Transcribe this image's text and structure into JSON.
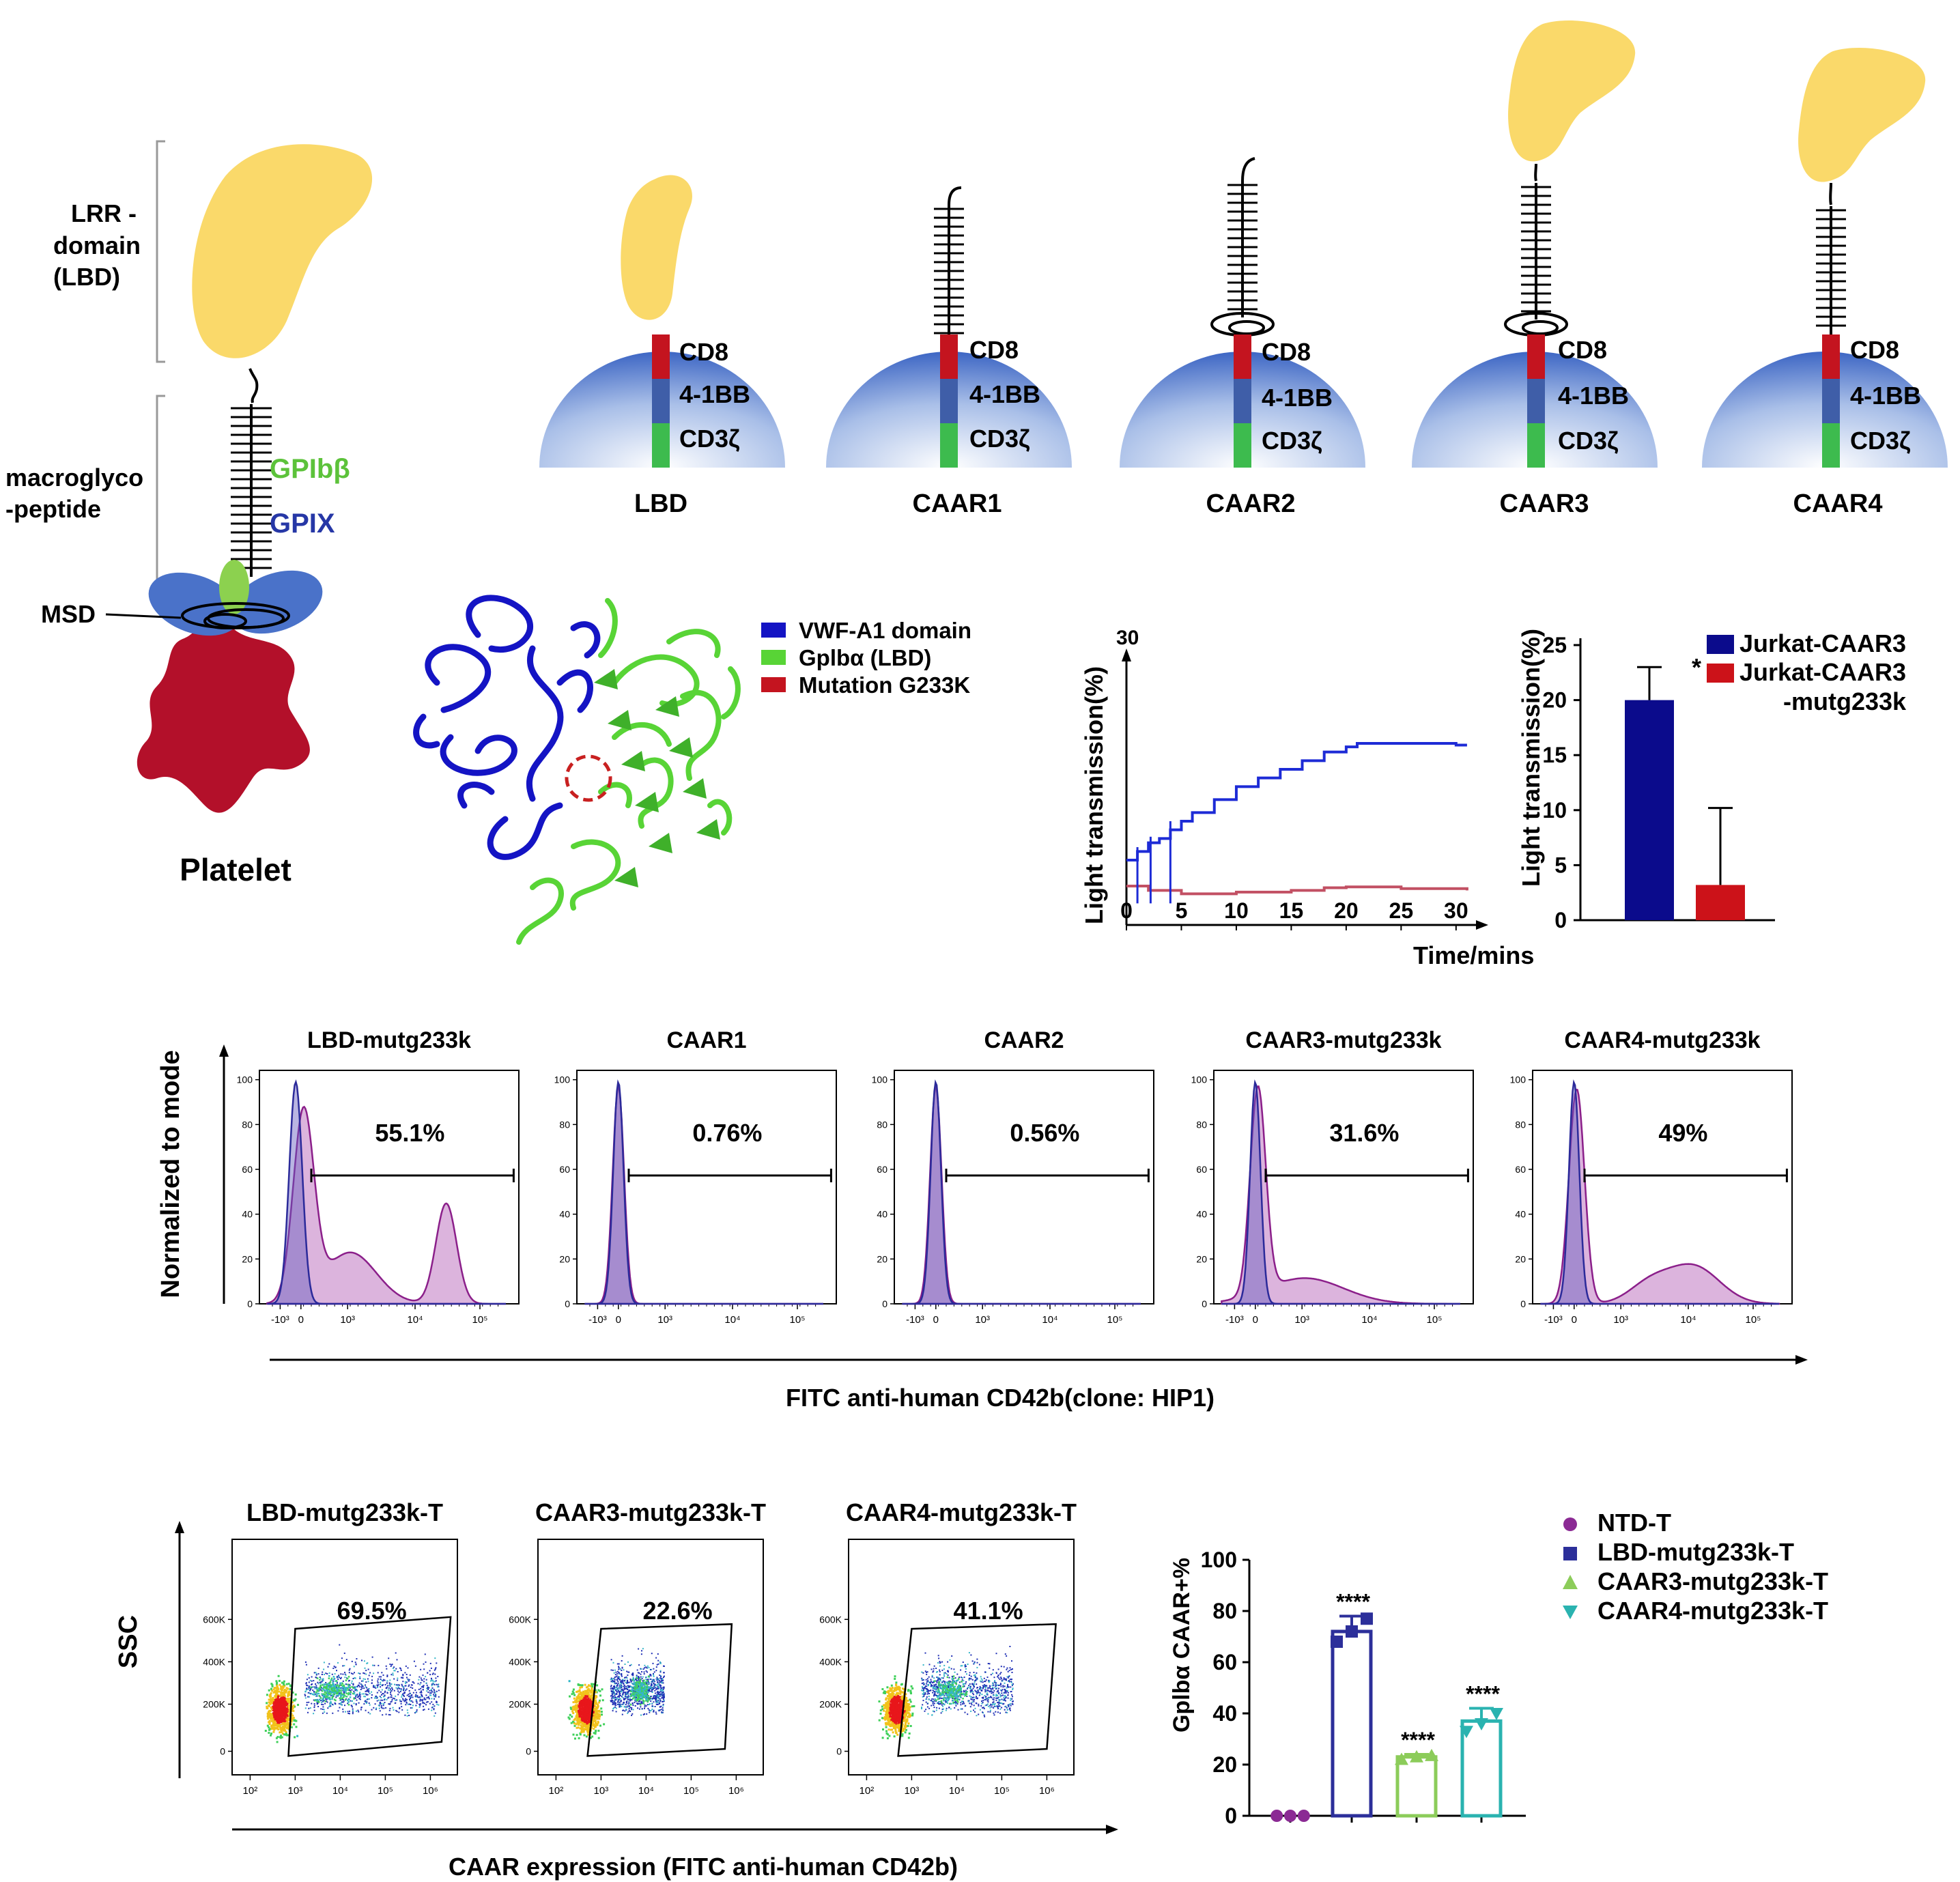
{
  "colors": {
    "yellow": "#fad96a",
    "cd8": "#c4141f",
    "bb41": "#3f5ea8",
    "cd3z": "#3dbb4e",
    "platelet": "#b3102a",
    "gpix": "#4a72c9",
    "gpib": "#8cd14f",
    "blue_line": "#1d2bd6",
    "red_line": "#c25063",
    "bar_blue": "#0b0b8c",
    "bar_red": "#cc1219",
    "flow_fill": "#dcb4dd",
    "flow_edge": "#8b1f8a",
    "flow_ctrl": "#2b2a9a",
    "ntd": "#8b2a94",
    "lbd": "#2c2f9a",
    "caar3": "#8ccc5a",
    "caar4": "#2ab3b0"
  },
  "panel_a": {
    "left": {
      "lrr_label": [
        "LRR -",
        "domain",
        "(LBD)"
      ],
      "macro_label": [
        "macroglyco",
        "-peptide"
      ],
      "gpib_label": "GPIbβ",
      "gpix_label": "GPIX",
      "msd_label": "MSD",
      "platelet_label": "Platelet"
    },
    "constructs": [
      {
        "name": "LBD",
        "head": "small",
        "stalk": false,
        "coil": false
      },
      {
        "name": "CAAR1",
        "head": "none",
        "stalk": true,
        "coil": false
      },
      {
        "name": "CAAR2",
        "head": "none",
        "stalk": true,
        "coil": true
      },
      {
        "name": "CAAR3",
        "head": "large",
        "stalk": true,
        "coil": true
      },
      {
        "name": "CAAR4",
        "head": "large",
        "stalk": true,
        "coil": false
      }
    ],
    "domains": [
      "CD8",
      "4-1BB",
      "CD3ζ"
    ]
  },
  "panel_b": {
    "legend": [
      "VWF-A1 domain",
      "Gplbα (LBD)",
      "Mutation G233K"
    ]
  },
  "chart_data": [
    {
      "type": "line",
      "title": "",
      "xlabel": "Time/mins",
      "ylabel": "Light transmission(%)",
      "ymax_label": "30",
      "xlim": [
        0,
        32
      ],
      "ylim": [
        0,
        30
      ],
      "x_ticks": [
        "0",
        "5",
        "10",
        "15",
        "20",
        "25",
        "30"
      ],
      "series": [
        {
          "name": "Jurkat-CAAR3",
          "x": [
            0,
            1,
            2,
            3,
            4,
            5,
            6,
            8,
            10,
            12,
            14,
            16,
            18,
            20,
            21,
            22,
            24,
            26,
            28,
            30,
            31
          ],
          "y": [
            7.5,
            8.5,
            9.5,
            10,
            11,
            12,
            13,
            14.5,
            16,
            17,
            18,
            19,
            20,
            20.6,
            21,
            21,
            21,
            21,
            21,
            20.8,
            20.8
          ]
        },
        {
          "name": "Jurkat-CAAR3-mutg233k",
          "x": [
            0,
            2,
            5,
            10,
            15,
            18,
            20,
            25,
            31
          ],
          "y": [
            4.5,
            4.0,
            3.6,
            3.8,
            4.0,
            4.3,
            4.4,
            4.2,
            4.0
          ]
        }
      ]
    },
    {
      "type": "bar",
      "ylabel": "Light transmission(%)",
      "ylim": [
        0,
        25
      ],
      "y_ticks": [
        "0",
        "5",
        "10",
        "15",
        "20",
        "25"
      ],
      "categories": [
        "Jurkat-CAAR3",
        "Jurkat-CAAR3-mutg233k"
      ],
      "legend_lines": [
        [
          "Jurkat-CAAR3"
        ],
        [
          "Jurkat-CAAR3",
          "-mutg233k"
        ]
      ],
      "values": [
        20.0,
        3.2
      ],
      "errors": [
        3.0,
        7.0
      ],
      "significance": "*"
    },
    {
      "type": "histogram",
      "ylabel": "Normalized to mode",
      "xlabel": "FITC anti-human CD42b(clone: HIP1)",
      "y_ticks": [
        "0",
        "20",
        "40",
        "60",
        "80",
        "100"
      ],
      "x_ticks": [
        "-10³",
        "0",
        "10³",
        "10⁴",
        "10⁵"
      ],
      "panels": [
        {
          "title": "LBD-mutg233k",
          "percent": "55.1%"
        },
        {
          "title": "CAAR1",
          "percent": "0.76%"
        },
        {
          "title": "CAAR2",
          "percent": "0.56%"
        },
        {
          "title": "CAAR3-mutg233k",
          "percent": "31.6%"
        },
        {
          "title": "CAAR4-mutg233k",
          "percent": "49%"
        }
      ]
    },
    {
      "type": "scatter",
      "ylabel": "SSC",
      "xlabel": "CAAR expression  (FITC anti-human CD42b)",
      "y_ticks": [
        "0",
        "200K",
        "400K",
        "600K"
      ],
      "x_ticks": [
        "10²",
        "10³",
        "10⁴",
        "10⁵",
        "10⁶"
      ],
      "panels": [
        {
          "title": "LBD-mutg233k-T",
          "percent": "69.5%"
        },
        {
          "title": "CAAR3-mutg233k-T",
          "percent": "22.6%"
        },
        {
          "title": "CAAR4-mutg233k-T",
          "percent": "41.1%"
        }
      ]
    },
    {
      "type": "bar",
      "ylabel": "Gplbα CAAR+%",
      "ylim": [
        0,
        100
      ],
      "y_ticks": [
        "0",
        "20",
        "40",
        "60",
        "80",
        "100"
      ],
      "categories": [
        "NTD-T",
        "LBD-mutg233k-T",
        "CAAR3-mutg233k-T",
        "CAAR4-mutg233k-T"
      ],
      "values": [
        0.3,
        72,
        23,
        37
      ],
      "errors": [
        0.3,
        6,
        1,
        5
      ],
      "points": [
        [
          0,
          0,
          0
        ],
        [
          68,
          72,
          77
        ],
        [
          22,
          23,
          23.5
        ],
        [
          33,
          36,
          40
        ]
      ],
      "significance": [
        "",
        "****",
        "****",
        "****"
      ]
    }
  ]
}
